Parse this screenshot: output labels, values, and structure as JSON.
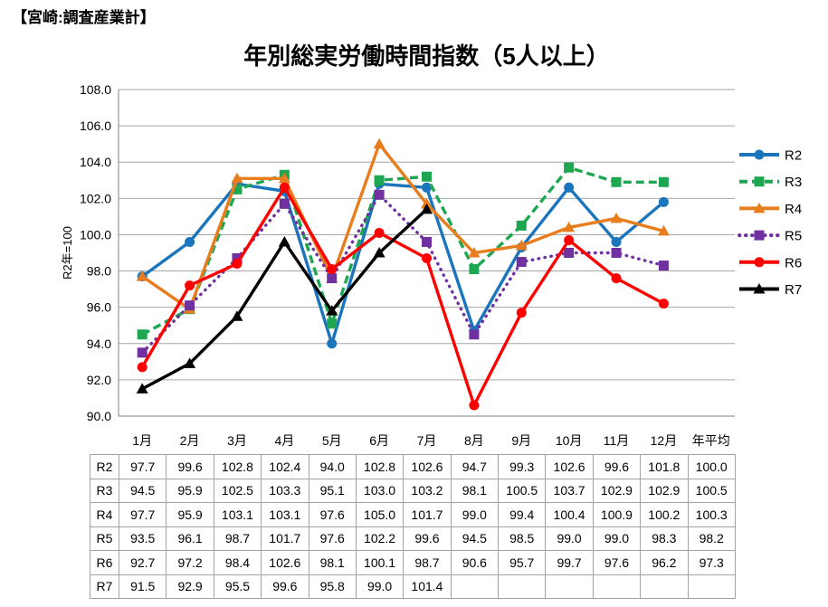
{
  "header": {
    "title": "【宮崎:調査産業計】"
  },
  "chart": {
    "title": "年別総実労働時間指数（5人以上）",
    "y_axis_title": "R2年=100"
  },
  "chart_data": {
    "type": "line",
    "title": "年別総実労働時間指数（5人以上）",
    "xlabel": "",
    "ylabel": "R2年=100",
    "ylim": [
      90.0,
      108.0
    ],
    "y_tick_step": 2.0,
    "grid": true,
    "legend_position": "right",
    "categories": [
      "1月",
      "2月",
      "3月",
      "4月",
      "5月",
      "6月",
      "7月",
      "8月",
      "9月",
      "10月",
      "11月",
      "12月",
      "年平均"
    ],
    "series": [
      {
        "name": "R2",
        "color": "#1B75BC",
        "line_style": "solid",
        "marker": "circle",
        "values": [
          97.7,
          99.6,
          102.8,
          102.4,
          94.0,
          102.8,
          102.6,
          94.7,
          99.3,
          102.6,
          99.6,
          101.8
        ],
        "annual_avg": 100.0
      },
      {
        "name": "R3",
        "color": "#1DA751",
        "line_style": "dashed",
        "marker": "square",
        "values": [
          94.5,
          95.9,
          102.5,
          103.3,
          95.1,
          103.0,
          103.2,
          98.1,
          100.5,
          103.7,
          102.9,
          102.9
        ],
        "annual_avg": 100.5
      },
      {
        "name": "R4",
        "color": "#E87D1E",
        "line_style": "solid",
        "marker": "triangle",
        "values": [
          97.7,
          95.9,
          103.1,
          103.1,
          97.6,
          105.0,
          101.7,
          99.0,
          99.4,
          100.4,
          100.9,
          100.2
        ],
        "annual_avg": 100.3
      },
      {
        "name": "R5",
        "color": "#7030A0",
        "line_style": "dotted",
        "marker": "square",
        "values": [
          93.5,
          96.1,
          98.7,
          101.7,
          97.6,
          102.2,
          99.6,
          94.5,
          98.5,
          99.0,
          99.0,
          98.3
        ],
        "annual_avg": 98.2
      },
      {
        "name": "R6",
        "color": "#FF0000",
        "line_style": "solid",
        "marker": "circle",
        "values": [
          92.7,
          97.2,
          98.4,
          102.6,
          98.1,
          100.1,
          98.7,
          90.6,
          95.7,
          99.7,
          97.6,
          96.2
        ],
        "annual_avg": 97.3
      },
      {
        "name": "R7",
        "color": "#000000",
        "line_style": "solid",
        "marker": "triangle",
        "values": [
          91.5,
          92.9,
          95.5,
          99.6,
          95.8,
          99.0,
          101.4,
          null,
          null,
          null,
          null,
          null
        ],
        "annual_avg": null
      }
    ]
  }
}
